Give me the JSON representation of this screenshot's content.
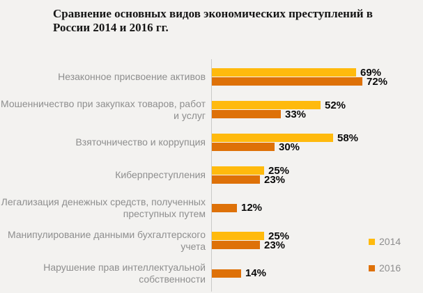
{
  "title": "Сравнение основных видов экономических преступлений в России 2014 и 2016 гг.",
  "colors": {
    "background": "#f3f2f0",
    "series_2014": "#FFBA0D",
    "series_2016": "#DE7108",
    "category_label": "#8e8e8e",
    "value_label": "#0a0a0a",
    "axis_line": "#c9c9c7",
    "title_text": "#151515"
  },
  "legend": [
    {
      "label": "2014",
      "color": "#FFBA0D"
    },
    {
      "label": "2016",
      "color": "#DE7108"
    }
  ],
  "chart_data": {
    "type": "bar",
    "orientation": "horizontal",
    "title": "Сравнение основных видов экономических преступлений в России 2014 и 2016 гг.",
    "categories": [
      "Незаконное присвоение активов",
      "Мошенничество при закупках товаров, работ и услуг",
      "Взяточничество и коррупция",
      "Киберпреступления",
      "Легализация денежных средств, полученных преступных путем",
      "Манипулирование данными бухгалтерского учета",
      "Нарушение прав интеллектуальной собственности"
    ],
    "series": [
      {
        "name": "2014",
        "color": "#FFBA0D",
        "values": [
          69,
          52,
          58,
          25,
          null,
          25,
          null
        ]
      },
      {
        "name": "2016",
        "color": "#DE7108",
        "values": [
          72,
          33,
          30,
          23,
          12,
          23,
          14
        ]
      }
    ],
    "value_suffix": "%",
    "xlim": [
      0,
      100
    ],
    "grid": false,
    "legend_position": "bottom-right"
  }
}
